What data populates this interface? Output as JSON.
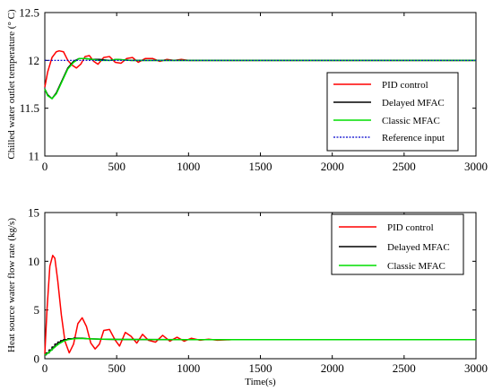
{
  "chart_data": [
    {
      "type": "line",
      "xlabel": "",
      "ylabel": "Chilled water outlet temperature (° C)",
      "xlim": [
        0,
        3000
      ],
      "ylim": [
        11,
        12.5
      ],
      "xticks": [
        "0",
        "500",
        "1000",
        "1500",
        "2000",
        "2500",
        "3000"
      ],
      "yticks": [
        "11",
        "11.5",
        "12",
        "12.5"
      ],
      "legend_position": "lower-right",
      "series": [
        {
          "name": "PID control",
          "color": "#ff0000",
          "style": "solid",
          "x": [
            0,
            20,
            50,
            80,
            100,
            130,
            160,
            190,
            220,
            250,
            280,
            310,
            340,
            370,
            410,
            450,
            490,
            530,
            570,
            610,
            650,
            700,
            750,
            800,
            850,
            900,
            950,
            1000,
            1050,
            1100,
            1150,
            1200,
            1300,
            1400,
            1500,
            1700,
            2000,
            3000
          ],
          "y": [
            11.72,
            11.88,
            12.03,
            12.09,
            12.1,
            12.09,
            12.0,
            11.95,
            11.92,
            11.96,
            12.04,
            12.05,
            11.99,
            11.96,
            12.03,
            12.04,
            11.98,
            11.97,
            12.02,
            12.03,
            11.98,
            12.02,
            12.02,
            11.99,
            12.01,
            12.0,
            12.01,
            12.0,
            12.0,
            12.0,
            12.0,
            12.0,
            12.0,
            12.0,
            12.0,
            12.0,
            12.0,
            12.0
          ]
        },
        {
          "name": "Delayed MFAC",
          "color": "#000000",
          "style": "solid",
          "x": [
            0,
            20,
            50,
            80,
            120,
            160,
            200,
            240,
            280,
            330,
            380,
            450,
            500,
            600,
            700,
            800,
            1000,
            1200,
            1500,
            2000,
            3000
          ],
          "y": [
            11.7,
            11.64,
            11.6,
            11.66,
            11.79,
            11.92,
            11.99,
            12.02,
            12.02,
            12.01,
            12.01,
            12.0,
            12.01,
            12.0,
            12.0,
            12.0,
            12.0,
            12.0,
            12.0,
            12.0,
            12.0
          ]
        },
        {
          "name": "Classic MFAC",
          "color": "#00dd00",
          "style": "solid",
          "x": [
            0,
            20,
            50,
            80,
            120,
            160,
            200,
            240,
            280,
            330,
            380,
            450,
            500,
            600,
            700,
            800,
            1000,
            1200,
            1500,
            2000,
            3000
          ],
          "y": [
            11.7,
            11.63,
            11.6,
            11.65,
            11.78,
            11.91,
            11.98,
            12.02,
            12.02,
            12.01,
            12.0,
            12.0,
            12.01,
            12.0,
            12.0,
            12.0,
            12.0,
            12.0,
            12.0,
            12.0,
            12.0
          ]
        },
        {
          "name": "Reference input",
          "color": "#0000cc",
          "style": "dotted",
          "x": [
            0,
            3000
          ],
          "y": [
            12.0,
            12.0
          ]
        }
      ]
    },
    {
      "type": "line",
      "xlabel": "Time(s)",
      "ylabel": "Heat source water flow rate (kg/s)",
      "xlim": [
        0,
        3000
      ],
      "ylim": [
        0,
        15
      ],
      "xticks": [
        "0",
        "500",
        "1000",
        "1500",
        "2000",
        "2500",
        "3000"
      ],
      "yticks": [
        "0",
        "5",
        "10",
        "15"
      ],
      "legend_position": "top-right",
      "series": [
        {
          "name": "PID control",
          "color": "#ff0000",
          "style": "solid",
          "x": [
            0,
            15,
            35,
            55,
            70,
            90,
            115,
            140,
            170,
            200,
            230,
            260,
            290,
            320,
            350,
            380,
            410,
            450,
            490,
            520,
            560,
            600,
            640,
            680,
            720,
            770,
            820,
            870,
            920,
            970,
            1020,
            1080,
            1140,
            1200,
            1300,
            1400,
            1500,
            1700,
            2000,
            3000
          ],
          "y": [
            0.5,
            5.0,
            9.5,
            10.6,
            10.3,
            8.0,
            4.5,
            1.8,
            0.6,
            1.5,
            3.6,
            4.2,
            3.3,
            1.6,
            1.0,
            1.5,
            2.9,
            3.0,
            1.9,
            1.3,
            2.7,
            2.3,
            1.6,
            2.5,
            1.9,
            1.7,
            2.4,
            1.8,
            2.2,
            1.8,
            2.1,
            1.9,
            2.0,
            1.9,
            1.95,
            1.95,
            1.95,
            1.95,
            1.95,
            1.95
          ]
        },
        {
          "name": "Delayed MFAC",
          "color": "#000000",
          "style": "solid",
          "x": [
            0,
            10,
            10,
            30,
            30,
            50,
            50,
            70,
            70,
            90,
            90,
            110,
            110,
            130,
            130,
            160,
            160,
            200,
            200,
            260,
            300,
            400,
            500,
            700,
            1000,
            1500,
            2000,
            3000
          ],
          "y": [
            0.4,
            0.4,
            0.6,
            0.6,
            0.9,
            0.9,
            1.2,
            1.2,
            1.5,
            1.5,
            1.7,
            1.7,
            1.85,
            1.85,
            1.95,
            1.95,
            2.05,
            2.05,
            2.1,
            2.1,
            2.05,
            2.0,
            1.98,
            1.97,
            1.96,
            1.95,
            1.95,
            1.95
          ]
        },
        {
          "name": "Classic MFAC",
          "color": "#00dd00",
          "style": "solid",
          "x": [
            0,
            15,
            40,
            70,
            100,
            130,
            160,
            200,
            250,
            300,
            400,
            500,
            700,
            1000,
            1500,
            2000,
            3000
          ],
          "y": [
            0.4,
            0.5,
            0.8,
            1.2,
            1.55,
            1.8,
            1.95,
            2.05,
            2.08,
            2.05,
            2.0,
            1.98,
            1.97,
            1.96,
            1.95,
            1.95,
            1.95
          ]
        }
      ]
    }
  ]
}
